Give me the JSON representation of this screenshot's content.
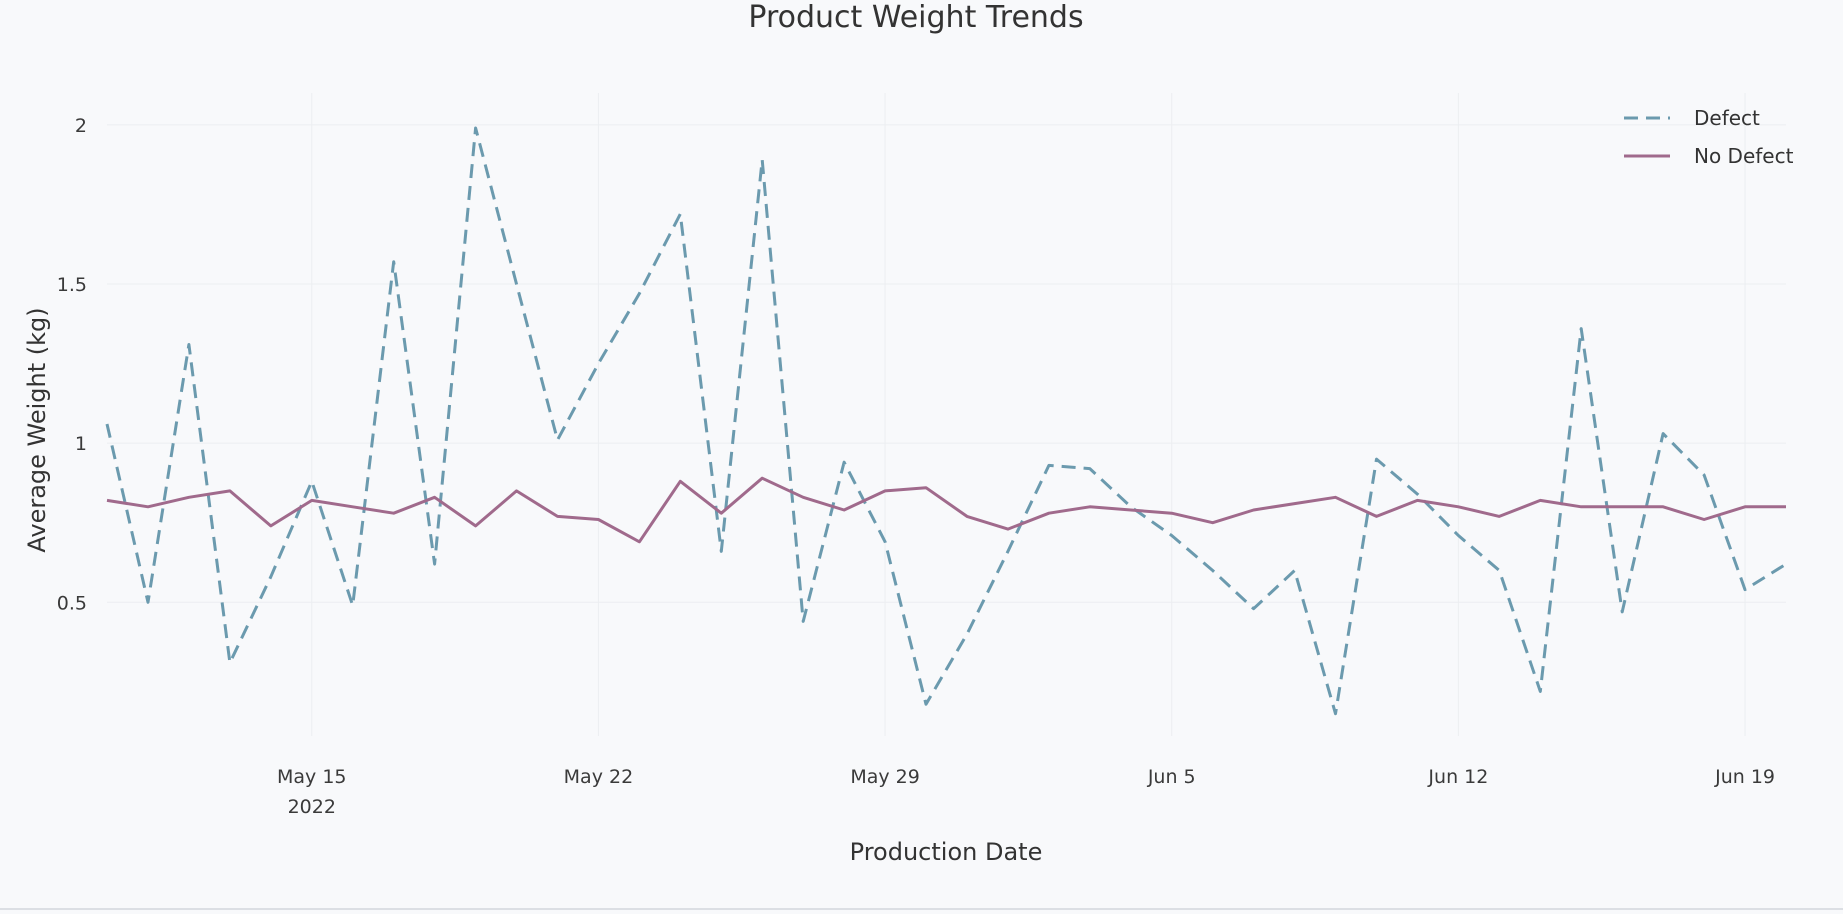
{
  "chart_data": {
    "type": "line",
    "title": "Product Weight Trends",
    "xlabel": "Production Date",
    "ylabel": "Average Weight (kg)",
    "x_start": "2022-05-10",
    "x_end": "2022-06-20",
    "x_ticks": [
      {
        "date": "2022-05-15",
        "label": "May 15",
        "sublabel": "2022"
      },
      {
        "date": "2022-05-22",
        "label": "May 22"
      },
      {
        "date": "2022-05-29",
        "label": "May 29"
      },
      {
        "date": "2022-06-05",
        "label": "Jun 5"
      },
      {
        "date": "2022-06-12",
        "label": "Jun 12"
      },
      {
        "date": "2022-06-19",
        "label": "Jun 19"
      }
    ],
    "y_ticks": [
      0.5,
      1,
      1.5,
      2
    ],
    "y_tick_labels": [
      "0.5",
      "1",
      "1.5",
      "2"
    ],
    "ylim": [
      0.08,
      2.1
    ],
    "grid": true,
    "legend_position": "top-right",
    "series": [
      {
        "name": "Defect",
        "color": "#6b9aae",
        "dash": "dashed",
        "values": [
          1.06,
          0.5,
          1.31,
          0.31,
          0.58,
          0.88,
          0.49,
          1.57,
          0.62,
          1.99,
          1.5,
          1.01,
          1.25,
          1.47,
          1.72,
          0.66,
          1.89,
          0.44,
          0.94,
          0.69,
          0.18,
          0.4,
          0.66,
          0.93,
          0.92,
          0.8,
          0.71,
          0.6,
          0.48,
          0.6,
          0.15,
          0.95,
          0.84,
          0.71,
          0.6,
          0.22,
          1.36,
          0.47,
          1.03,
          0.9,
          0.54,
          0.62
        ]
      },
      {
        "name": "No Defect",
        "color": "#a06a8c",
        "dash": "solid",
        "values": [
          0.82,
          0.8,
          0.83,
          0.85,
          0.74,
          0.82,
          0.8,
          0.78,
          0.83,
          0.74,
          0.85,
          0.77,
          0.76,
          0.69,
          0.88,
          0.78,
          0.89,
          0.83,
          0.79,
          0.85,
          0.86,
          0.77,
          0.73,
          0.78,
          0.8,
          0.79,
          0.78,
          0.75,
          0.79,
          0.81,
          0.83,
          0.77,
          0.82,
          0.8,
          0.77,
          0.82,
          0.8,
          0.8,
          0.8,
          0.76,
          0.8,
          0.8
        ]
      }
    ]
  }
}
